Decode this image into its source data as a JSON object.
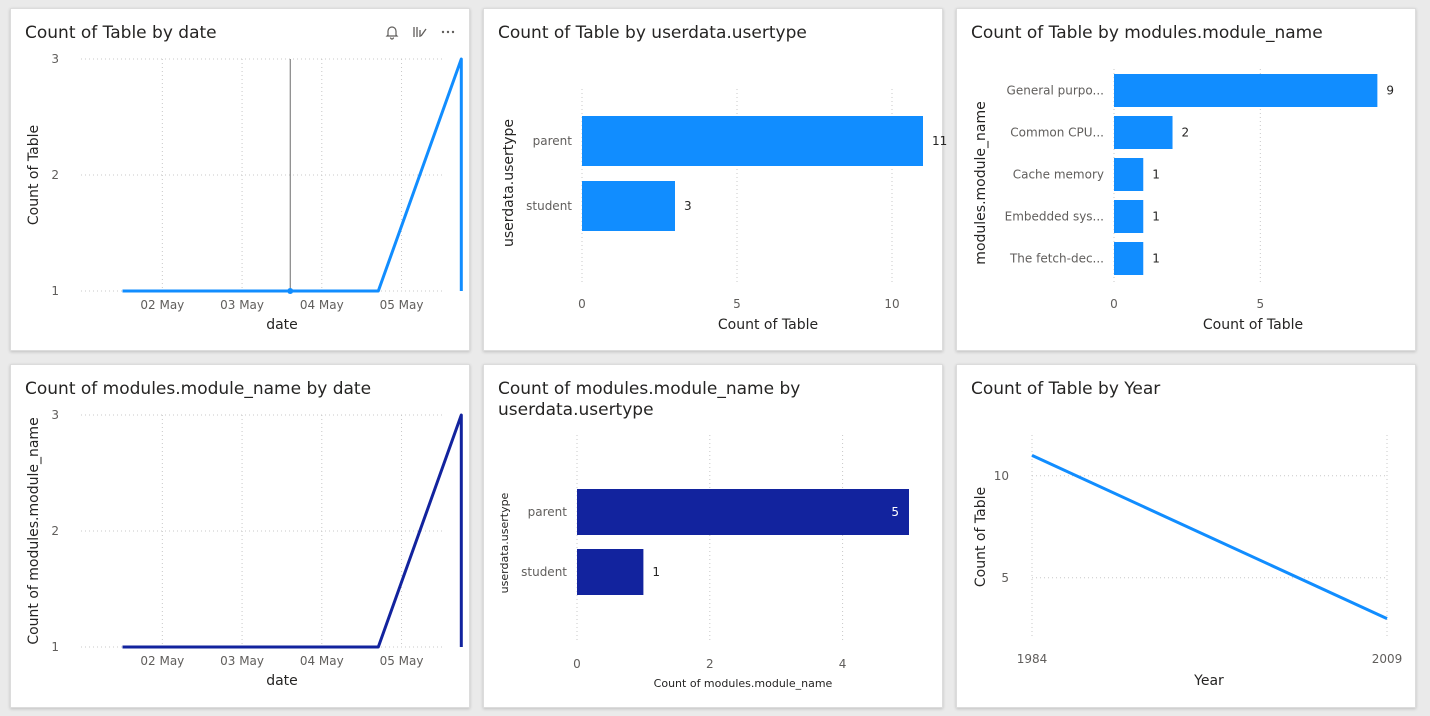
{
  "colors": {
    "light_blue": "#118DFF",
    "dark_blue": "#12239E"
  },
  "chart_data": [
    {
      "type": "line",
      "title": "Count of Table by date",
      "xlabel": "date",
      "ylabel": "Count of Table",
      "x_ticks": [
        "02 May",
        "03 May",
        "04 May",
        "05 May"
      ],
      "y_ticks": [
        1,
        2,
        3
      ],
      "ylim": [
        1,
        3
      ],
      "color": "#118DFF",
      "points": [
        {
          "x": "01 May 12:00",
          "y": 1
        },
        {
          "x": "03 May 14:30",
          "y": 1
        },
        {
          "x": "04 May 17:00",
          "y": 1
        },
        {
          "x": "05 May 18:00",
          "y": 3
        },
        {
          "x": "05 May 18:00",
          "y": 1
        }
      ]
    },
    {
      "type": "bar",
      "title": "Count of Table by userdata.usertype",
      "xlabel": "Count of Table",
      "ylabel": "userdata.usertype",
      "categories": [
        "parent",
        "student"
      ],
      "values": [
        11,
        3
      ],
      "x_ticks": [
        0,
        5,
        10
      ],
      "xlim": [
        0,
        12
      ],
      "color": "#118DFF"
    },
    {
      "type": "bar",
      "title": "Count of Table by modules.module_name",
      "xlabel": "Count of Table",
      "ylabel": "modules.module_name",
      "categories": [
        "General purpo...",
        "Common CPU...",
        "Cache memory",
        "Embedded sys...",
        "The fetch-dec..."
      ],
      "values": [
        9,
        2,
        1,
        1,
        1
      ],
      "x_ticks": [
        0,
        5
      ],
      "xlim": [
        0,
        9.5
      ],
      "color": "#118DFF"
    },
    {
      "type": "line",
      "title": "Count of modules.module_name by date",
      "xlabel": "date",
      "ylabel": "Count of modules.module_name",
      "x_ticks": [
        "02 May",
        "03 May",
        "04 May",
        "05 May"
      ],
      "y_ticks": [
        1,
        2,
        3
      ],
      "ylim": [
        1,
        3
      ],
      "color": "#12239E",
      "points": [
        {
          "x": "01 May 12:00",
          "y": 1
        },
        {
          "x": "04 May 17:00",
          "y": 1
        },
        {
          "x": "05 May 18:00",
          "y": 3
        },
        {
          "x": "05 May 18:00",
          "y": 1
        }
      ]
    },
    {
      "type": "bar",
      "title": "Count of modules.module_name by userdata.usertype",
      "title_lines": [
        "Count of modules.module_name by",
        "userdata.usertype"
      ],
      "xlabel": "Count of modules.module_name",
      "ylabel": "userdata.usertype",
      "categories": [
        "parent",
        "student"
      ],
      "values": [
        5,
        1
      ],
      "x_ticks": [
        0,
        2,
        4
      ],
      "xlim": [
        0,
        5
      ],
      "color": "#12239E"
    },
    {
      "type": "line",
      "title": "Count of Table by Year",
      "xlabel": "Year",
      "ylabel": "Count of Table",
      "x_ticks": [
        1984,
        2009
      ],
      "y_ticks": [
        5,
        10
      ],
      "xlim": [
        1984,
        2009
      ],
      "ylim": [
        2,
        12
      ],
      "color": "#118DFF",
      "points": [
        {
          "x": 1984,
          "y": 11
        },
        {
          "x": 2009,
          "y": 3
        }
      ]
    }
  ]
}
